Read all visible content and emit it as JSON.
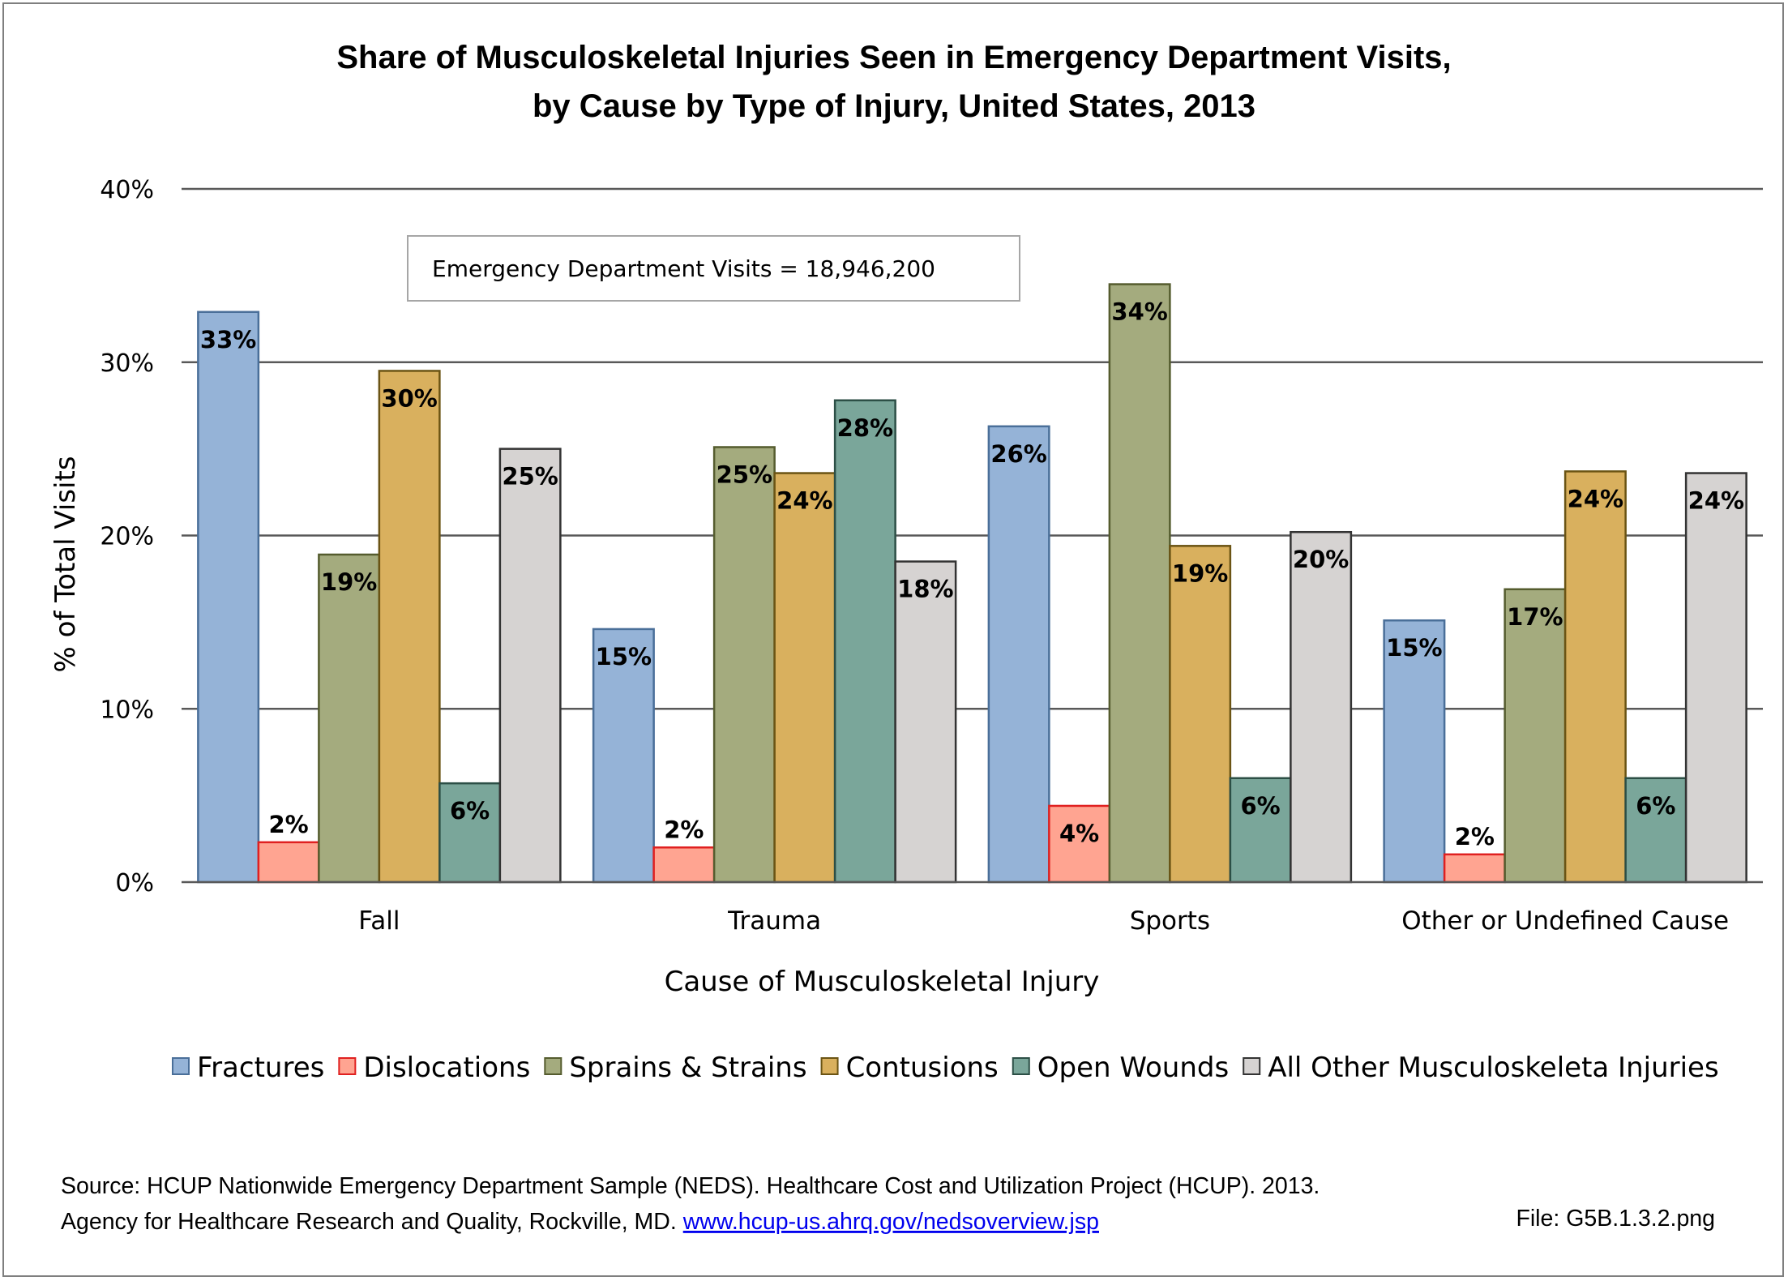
{
  "chart_data": {
    "type": "bar",
    "title_line1": "Share of Musculoskeletal Injuries Seen in Emergency Department Visits,",
    "title_line2": "by Cause by Type of Injury, United States, 2013",
    "xlabel": "Cause of Musculoskeletal Injury",
    "ylabel": "% of Total Visits",
    "ylim": [
      0,
      40
    ],
    "yticks": [
      "0%",
      "10%",
      "20%",
      "30%",
      "40%"
    ],
    "grid": true,
    "legend_position": "bottom",
    "categories": [
      "Fall",
      "Trauma",
      "Sports",
      "Other or Undefined Cause"
    ],
    "series": [
      {
        "name": "Fractures",
        "color": "#95b3d7",
        "stroke": "#4a6f99",
        "values": [
          32.9,
          14.6,
          26.3,
          15.1
        ],
        "labels": [
          "33%",
          "15%",
          "26%",
          "15%"
        ]
      },
      {
        "name": "Dislocations",
        "color": "#ffa491",
        "stroke": "#e02020",
        "values": [
          2.3,
          2.0,
          4.4,
          1.6
        ],
        "labels": [
          "2%",
          "2%",
          "4%",
          "2%"
        ]
      },
      {
        "name": "Sprains & Strains",
        "color": "#a4ab7e",
        "stroke": "#555c2e",
        "values": [
          18.9,
          25.1,
          34.5,
          16.9
        ],
        "labels": [
          "19%",
          "25%",
          "34%",
          "17%"
        ]
      },
      {
        "name": "Contusions",
        "color": "#d9b05e",
        "stroke": "#6b5414",
        "values": [
          29.5,
          23.6,
          19.4,
          23.7
        ],
        "labels": [
          "30%",
          "24%",
          "19%",
          "24%"
        ]
      },
      {
        "name": "Open Wounds",
        "color": "#7aa69a",
        "stroke": "#2c4f46",
        "values": [
          5.7,
          27.8,
          6.0,
          6.0
        ],
        "labels": [
          "6%",
          "28%",
          "6%",
          "6%"
        ]
      },
      {
        "name": "All Other Musculoskeleta Injuries",
        "color": "#d6d3d2",
        "stroke": "#333333",
        "values": [
          25.0,
          18.5,
          20.2,
          23.6
        ],
        "labels": [
          "25%",
          "18%",
          "20%",
          "24%"
        ]
      }
    ]
  },
  "annotation": "Emergency Department Visits = 18,946,200",
  "source_line1": "Source: HCUP Nationwide Emergency Department Sample (NEDS). Healthcare Cost and Utilization Project (HCUP). 2013.",
  "source_line2_prefix": "Agency for Healthcare Research and Quality, Rockville, MD. ",
  "source_link": "www.hcup-us.ahrq.gov/nedsoverview.jsp",
  "file_label": "File: G5B.1.3.2.png"
}
